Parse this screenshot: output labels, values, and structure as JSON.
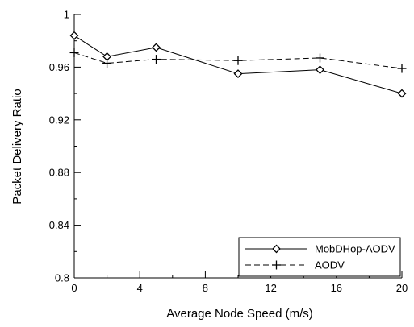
{
  "chart_data": {
    "type": "line",
    "xlabel": "Average Node Speed (m/s)",
    "ylabel": "Packet Delivery Ratio",
    "xlim": [
      0,
      20
    ],
    "ylim": [
      0.8,
      1.0
    ],
    "x_ticks": [
      0,
      4,
      8,
      12,
      16,
      20
    ],
    "y_ticks": [
      0.8,
      0.84,
      0.88,
      0.92,
      0.96,
      1.0
    ],
    "x_tick_labels": [
      "0",
      "4",
      "8",
      "12",
      "16",
      "20"
    ],
    "y_tick_labels": [
      "0.8",
      "0.84",
      "0.88",
      "0.92",
      "0.96",
      "1"
    ],
    "grid": false,
    "legend_position": "bottom-right",
    "series": [
      {
        "name": "MobDHop-AODV",
        "marker": "diamond",
        "line_style": "solid",
        "color": "#000000",
        "x": [
          0,
          2,
          5,
          10,
          15,
          20
        ],
        "y": [
          0.984,
          0.968,
          0.975,
          0.955,
          0.958,
          0.94
        ]
      },
      {
        "name": "AODV",
        "marker": "plus",
        "line_style": "dashed",
        "color": "#000000",
        "x": [
          0,
          2,
          5,
          10,
          15,
          20
        ],
        "y": [
          0.971,
          0.963,
          0.966,
          0.965,
          0.967,
          0.959
        ]
      }
    ]
  }
}
